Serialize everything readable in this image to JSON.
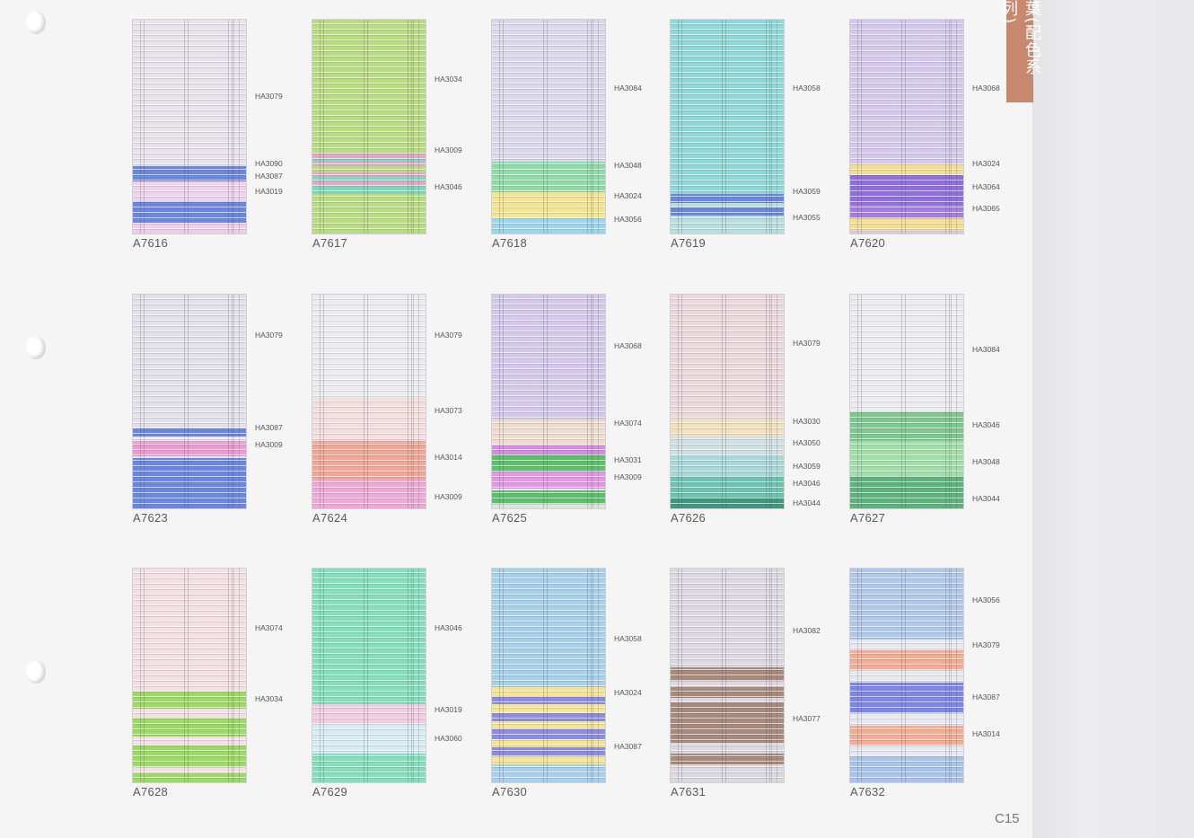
{
  "series_tab": "葉(配色系列)",
  "page_number": "C15",
  "swatches": [
    {
      "model": "A7616",
      "bands": [
        [
          "#e8e2ea",
          0,
          68
        ],
        [
          "#6b86e0",
          68,
          75
        ],
        [
          "#f0d2ea",
          75,
          84
        ],
        [
          "#6b86e0",
          84,
          94
        ],
        [
          "#f0cde8",
          94,
          100
        ]
      ],
      "codes": [
        [
          "HA3079",
          36
        ],
        [
          "HA3090",
          67
        ],
        [
          "HA3087",
          73
        ],
        [
          "HA3019",
          80
        ]
      ]
    },
    {
      "model": "A7617",
      "bands": [
        [
          "#b9dc82",
          0,
          62
        ],
        [
          "#e5a7c8",
          62,
          64
        ],
        [
          "#7fd8b8",
          64,
          66
        ],
        [
          "#e5a7c8",
          66,
          68
        ],
        [
          "#b9dc82",
          68,
          71
        ],
        [
          "#e5a7c8",
          71,
          73
        ],
        [
          "#7fd8b8",
          73,
          75
        ],
        [
          "#e5a7c8",
          75,
          77
        ],
        [
          "#7fd8b8",
          77,
          81
        ],
        [
          "#b9dc82",
          81,
          100
        ]
      ],
      "codes": [
        [
          "HA3034",
          28
        ],
        [
          "HA3009",
          61
        ],
        [
          "HA3046",
          78
        ]
      ]
    },
    {
      "model": "A7618",
      "bands": [
        [
          "#dcd8ec",
          0,
          66
        ],
        [
          "#8fdca8",
          66,
          80
        ],
        [
          "#f6e48e",
          80,
          92
        ],
        [
          "#9dd6ea",
          92,
          100
        ]
      ],
      "codes": [
        [
          "HA3084",
          32
        ],
        [
          "HA3048",
          68
        ],
        [
          "HA3024",
          82
        ],
        [
          "HA3056",
          93
        ]
      ]
    },
    {
      "model": "A7619",
      "bands": [
        [
          "#8ed8d8",
          0,
          81
        ],
        [
          "#6b86e0",
          81,
          85
        ],
        [
          "#b8dede",
          85,
          87
        ],
        [
          "#6b86e0",
          87,
          91
        ],
        [
          "#b8dede",
          91,
          100
        ]
      ],
      "codes": [
        [
          "HA3058",
          32
        ],
        [
          "HA3059",
          80
        ],
        [
          "HA3055",
          92
        ]
      ]
    },
    {
      "model": "A7620",
      "bands": [
        [
          "#d4c8ec",
          0,
          67
        ],
        [
          "#f4de90",
          67,
          72
        ],
        [
          "#8f6ee0",
          72,
          86
        ],
        [
          "#a47ee0",
          86,
          92
        ],
        [
          "#f4de90",
          92,
          98
        ],
        [
          "#d4c8ec",
          98,
          100
        ]
      ],
      "codes": [
        [
          "HA3068",
          32
        ],
        [
          "HA3024",
          67
        ],
        [
          "HA3064",
          78
        ],
        [
          "HA3065",
          88
        ]
      ]
    },
    {
      "model": "A7623",
      "bands": [
        [
          "#e2e0e8",
          0,
          62
        ],
        [
          "#6b86e0",
          62,
          66
        ],
        [
          "#e8e6ee",
          66,
          68
        ],
        [
          "#ee9cd0",
          68,
          75
        ],
        [
          "#e8e6ee",
          75,
          76
        ],
        [
          "#6b86e0",
          76,
          100
        ]
      ],
      "codes": [
        [
          "HA3079",
          19
        ],
        [
          "HA3087",
          62
        ],
        [
          "HA3009",
          70
        ]
      ]
    },
    {
      "model": "A7624",
      "bands": [
        [
          "#ecebef",
          0,
          48
        ],
        [
          "#f4dede",
          48,
          68
        ],
        [
          "#f4a696",
          68,
          86
        ],
        [
          "#f0a8d4",
          86,
          100
        ]
      ],
      "codes": [
        [
          "HA3079",
          19
        ],
        [
          "HA3073",
          54
        ],
        [
          "HA3014",
          76
        ],
        [
          "HA3009",
          94
        ]
      ]
    },
    {
      "model": "A7625",
      "bands": [
        [
          "#d4c8ec",
          0,
          58
        ],
        [
          "#f0dccc",
          58,
          70
        ],
        [
          "#d68ae6",
          70,
          74
        ],
        [
          "#5cc06a",
          74,
          82
        ],
        [
          "#e696e6",
          82,
          90
        ],
        [
          "#ede4f4",
          90,
          91
        ],
        [
          "#5cc06a",
          91,
          97
        ],
        [
          "#e0e0e8",
          97,
          100
        ]
      ],
      "codes": [
        [
          "HA3068",
          24
        ],
        [
          "HA3074",
          60
        ],
        [
          "HA3031",
          77
        ],
        [
          "HA3009",
          85
        ]
      ]
    },
    {
      "model": "A7626",
      "bands": [
        [
          "#ead8dc",
          0,
          58
        ],
        [
          "#f4e0bc",
          58,
          66
        ],
        [
          "#d0e0e2",
          66,
          75
        ],
        [
          "#a8d8d8",
          75,
          84
        ],
        [
          "#6cc4b0",
          84,
          94
        ],
        [
          "#3e9880",
          94,
          100
        ]
      ],
      "codes": [
        [
          "HA3079",
          23
        ],
        [
          "HA3030",
          59
        ],
        [
          "HA3050",
          69
        ],
        [
          "HA3059",
          80
        ],
        [
          "HA3046",
          88
        ],
        [
          "HA3044",
          97
        ]
      ]
    },
    {
      "model": "A7627",
      "bands": [
        [
          "#ecebef",
          0,
          54
        ],
        [
          "#7ec890",
          54,
          68
        ],
        [
          "#a0e0a8",
          68,
          84
        ],
        [
          "#5cb47c",
          84,
          100
        ]
      ],
      "codes": [
        [
          "HA3084",
          26
        ],
        [
          "HA3046",
          61
        ],
        [
          "HA3048",
          78
        ],
        [
          "HA3044",
          95
        ]
      ]
    },
    {
      "model": "A7628",
      "bands": [
        [
          "#f4e0e4",
          0,
          57
        ],
        [
          "#9cda64",
          57,
          65
        ],
        [
          "#f4e0e4",
          65,
          69
        ],
        [
          "#9cda64",
          69,
          78
        ],
        [
          "#f4e0e4",
          78,
          82
        ],
        [
          "#9cda64",
          82,
          92
        ],
        [
          "#f4e0e4",
          92,
          95
        ],
        [
          "#9cda64",
          95,
          100
        ]
      ],
      "codes": [
        [
          "HA3074",
          28
        ],
        [
          "HA3034",
          61
        ]
      ]
    },
    {
      "model": "A7629",
      "bands": [
        [
          "#84e0bc",
          0,
          63
        ],
        [
          "#f4cce0",
          63,
          72
        ],
        [
          "#d8ecf4",
          72,
          86
        ],
        [
          "#84e0bc",
          86,
          100
        ]
      ],
      "codes": [
        [
          "HA3046",
          28
        ],
        [
          "HA3019",
          66
        ],
        [
          "HA3060",
          79
        ]
      ]
    },
    {
      "model": "A7630",
      "bands": [
        [
          "#a8d0ec",
          0,
          55
        ],
        [
          "#f6e48e",
          55,
          59
        ],
        [
          "#8c8ce6",
          59,
          63
        ],
        [
          "#f6e48e",
          63,
          67
        ],
        [
          "#8c8ce6",
          67,
          71
        ],
        [
          "#f6e48e",
          71,
          74
        ],
        [
          "#8c8ce6",
          74,
          79
        ],
        [
          "#f6e48e",
          79,
          83
        ],
        [
          "#8c8ce6",
          83,
          87
        ],
        [
          "#f6e48e",
          87,
          91
        ],
        [
          "#a8d0ec",
          91,
          100
        ]
      ],
      "codes": [
        [
          "HA3058",
          33
        ],
        [
          "HA3024",
          58
        ],
        [
          "HA3087",
          83
        ]
      ]
    },
    {
      "model": "A7631",
      "bands": [
        [
          "#dcd8e0",
          0,
          46
        ],
        [
          "#a88a7c",
          46,
          52
        ],
        [
          "#dcd8e0",
          52,
          55
        ],
        [
          "#a88a7c",
          55,
          60
        ],
        [
          "#dcd8e0",
          60,
          62
        ],
        [
          "#a88a7c",
          62,
          81
        ],
        [
          "#dcd8e0",
          81,
          86
        ],
        [
          "#a88a7c",
          86,
          91
        ],
        [
          "#dcd8e0",
          91,
          100
        ]
      ],
      "codes": [
        [
          "HA3082",
          29
        ],
        [
          "HA3077",
          70
        ]
      ]
    },
    {
      "model": "A7632",
      "bands": [
        [
          "#b0c8ec",
          0,
          33
        ],
        [
          "#e8e8f0",
          33,
          38
        ],
        [
          "#f6ac92",
          38,
          47
        ],
        [
          "#e8e8f0",
          47,
          53
        ],
        [
          "#7c86ec",
          53,
          67
        ],
        [
          "#e8e8f0",
          67,
          73
        ],
        [
          "#f6ac92",
          73,
          82
        ],
        [
          "#e8e8f0",
          82,
          87
        ],
        [
          "#a8c4ec",
          87,
          100
        ]
      ],
      "codes": [
        [
          "HA3056",
          15
        ],
        [
          "HA3079",
          36
        ],
        [
          "HA3087",
          60
        ],
        [
          "HA3014",
          77
        ]
      ]
    }
  ]
}
